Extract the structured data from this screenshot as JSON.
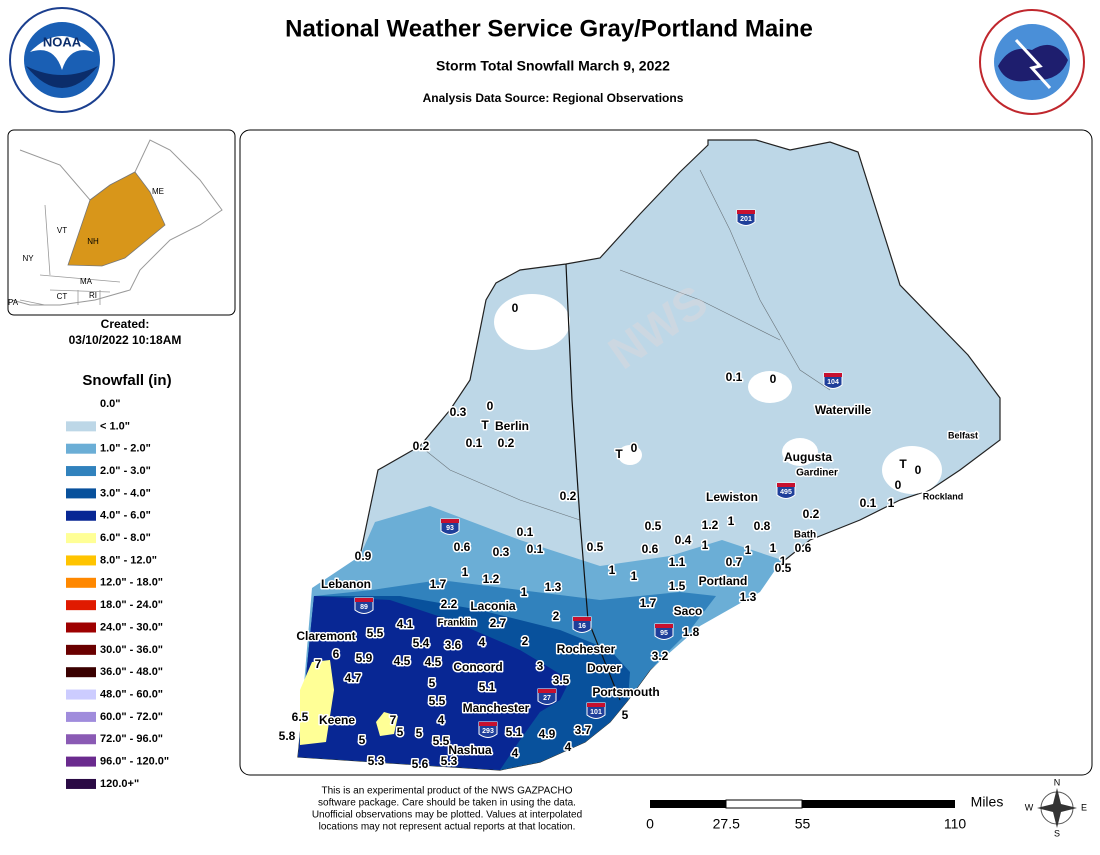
{
  "header": {
    "title": "National Weather Service Gray/Portland Maine",
    "subtitle": "Storm Total Snowfall March 9, 2022",
    "source": "Analysis Data Source: Regional Observations"
  },
  "logos": {
    "noaa": "NOAA"
  },
  "inset": {
    "labels": [
      "ME",
      "VT",
      "NH",
      "NY",
      "MA",
      "CT",
      "RI",
      "PA"
    ]
  },
  "created": {
    "label": "Created:",
    "date": "03/10/2022 10:18AM"
  },
  "legend": {
    "title": "Snowfall (in)",
    "entries": [
      {
        "label": "0.0\"",
        "color": "#ffffff"
      },
      {
        "label": "< 1.0\"",
        "color": "#bdd7e7"
      },
      {
        "label": "1.0\" - 2.0\"",
        "color": "#6baed6"
      },
      {
        "label": "2.0\" - 3.0\"",
        "color": "#3182bd"
      },
      {
        "label": "3.0\" - 4.0\"",
        "color": "#08519c"
      },
      {
        "label": "4.0\" - 6.0\"",
        "color": "#082794"
      },
      {
        "label": "6.0\" - 8.0\"",
        "color": "#ffff96"
      },
      {
        "label": "8.0\" - 12.0\"",
        "color": "#ffc400"
      },
      {
        "label": "12.0\" - 18.0\"",
        "color": "#ff8800"
      },
      {
        "label": "18.0\" - 24.0\"",
        "color": "#e01a00"
      },
      {
        "label": "24.0\" - 30.0\"",
        "color": "#9e0000"
      },
      {
        "label": "30.0\" - 36.0\"",
        "color": "#6a0000"
      },
      {
        "label": "36.0\" - 48.0\"",
        "color": "#3a0000"
      },
      {
        "label": "48.0\" - 60.0\"",
        "color": "#ccccff"
      },
      {
        "label": "60.0\" - 72.0\"",
        "color": "#a08cdc"
      },
      {
        "label": "72.0\" - 96.0\"",
        "color": "#8a5ab4"
      },
      {
        "label": "96.0\" - 120.0\"",
        "color": "#6a2a8e"
      },
      {
        "label": "120.0+\"",
        "color": "#2a0a44"
      }
    ]
  },
  "map": {
    "cities": [
      "Berlin",
      "Lebanon",
      "Laconia",
      "Franklin",
      "Claremont",
      "Concord",
      "Rochester",
      "Dover",
      "Portsmouth",
      "Manchester",
      "Keene",
      "Nashua",
      "Saco",
      "Portland",
      "Lewiston",
      "Augusta",
      "Gardiner",
      "Waterville",
      "Bath",
      "Belfast",
      "Rockland"
    ],
    "routes": [
      "201",
      "104",
      "495",
      "93",
      "89",
      "16",
      "95",
      "27",
      "101",
      "293"
    ],
    "observations": [
      0,
      0.3,
      0,
      "T",
      0.2,
      0.1,
      0.2,
      "T",
      0,
      0.1,
      0,
      "T",
      0,
      0,
      0.1,
      1,
      0.2,
      0.2,
      0.1,
      0.5,
      1.2,
      1,
      0.8,
      0.6,
      0.3,
      0.1,
      0.5,
      0.6,
      0.4,
      1,
      0.9,
      1.1,
      0.7,
      1,
      1,
      0.6,
      1,
      0.5,
      1,
      1,
      1,
      1.5,
      1.7,
      1.2,
      1,
      1.3,
      1.3,
      2.2,
      1.7,
      2,
      1.8,
      4.1,
      2.7,
      5.5,
      5.4,
      3.6,
      4,
      2,
      7,
      6,
      5.9,
      4.5,
      4.5,
      3,
      3.2,
      4.7,
      5,
      3.5,
      5.1,
      5.5,
      4,
      5,
      6.5,
      7,
      5,
      5,
      3.7,
      5.8,
      5,
      5.5,
      5.1,
      4.9,
      4,
      4,
      5.3,
      5.6,
      5.3
    ]
  },
  "footer": {
    "note": [
      "This is an experimental product of the NWS GAZPACHO",
      "software package. Care should be taken in using the data.",
      "Unofficial observations may be plotted. Values at interpolated",
      "locations may not represent actual reports at that location."
    ]
  },
  "scale": {
    "unit": "Miles",
    "ticks": [
      0,
      27.5,
      55,
      110
    ]
  },
  "compass": [
    "N",
    "E",
    "S",
    "W"
  ]
}
